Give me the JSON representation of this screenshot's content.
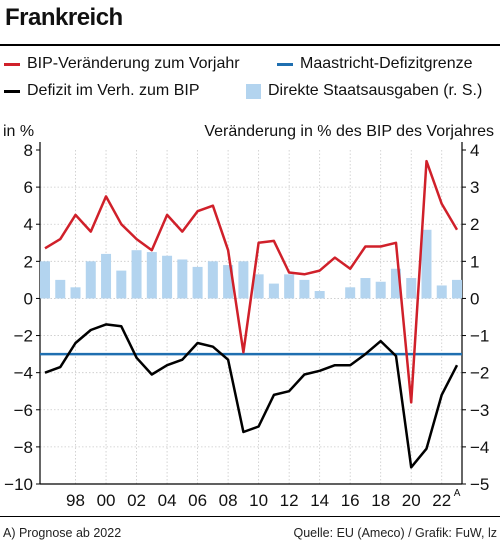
{
  "title": "Frankreich",
  "legend": {
    "gdp_change": "BIP-Veränderung zum Vorjahr",
    "maastricht": "Maastricht-Defizitgrenze",
    "deficit": "Defizit im Verh. zum BIP",
    "spending": "Direkte Staatsausgaben (r. S.)"
  },
  "footnote": "A) Prognose ab 2022",
  "source": "Quelle: EU (Ameco) / Grafik: FuW, lz",
  "colors": {
    "gdp_line": "#d0202a",
    "deficit_line": "#000000",
    "maastricht_line": "#1f6fb0",
    "spending_bars": "#b3d4ef"
  },
  "chart_data": {
    "type": "bar+line",
    "left_axis_label": "in %",
    "right_axis_label": "Veränderung in % des BIP des Vorjahres",
    "left_ylim": [
      -10,
      8
    ],
    "right_ylim": [
      -5,
      4
    ],
    "left_ticks": [
      "8",
      "6",
      "4",
      "2",
      "0",
      "−2",
      "−4",
      "−6",
      "−8",
      "−10"
    ],
    "right_ticks": [
      "4",
      "3",
      "2",
      "1",
      "0",
      "−1",
      "−2",
      "−3",
      "−4",
      "−5"
    ],
    "x_labels": [
      "98",
      "00",
      "02",
      "04",
      "06",
      "08",
      "10",
      "12",
      "14",
      "16",
      "18",
      "20",
      "22"
    ],
    "x_label_superscript": "A",
    "years": [
      1996,
      1997,
      1998,
      1999,
      2000,
      2001,
      2002,
      2003,
      2004,
      2005,
      2006,
      2007,
      2008,
      2009,
      2010,
      2011,
      2012,
      2013,
      2014,
      2015,
      2016,
      2017,
      2018,
      2019,
      2020,
      2021,
      2022,
      2023
    ],
    "series": [
      {
        "name": "BIP-Veränderung zum Vorjahr",
        "type": "line",
        "axis": "left",
        "values": [
          2.7,
          3.2,
          4.5,
          3.6,
          5.5,
          4.0,
          3.2,
          2.6,
          4.5,
          3.6,
          4.7,
          5.0,
          2.6,
          -2.9,
          3.0,
          3.1,
          1.4,
          1.3,
          1.5,
          2.2,
          1.6,
          2.8,
          2.8,
          3.0,
          -5.6,
          7.4,
          5.1,
          3.7
        ]
      },
      {
        "name": "Defizit im Verh. zum BIP",
        "type": "line",
        "axis": "left",
        "values": [
          -4.0,
          -3.7,
          -2.4,
          -1.7,
          -1.4,
          -1.5,
          -3.2,
          -4.1,
          -3.6,
          -3.3,
          -2.4,
          -2.6,
          -3.3,
          -7.2,
          -6.9,
          -5.2,
          -5.0,
          -4.1,
          -3.9,
          -3.6,
          -3.6,
          -3.0,
          -2.3,
          -3.1,
          -9.1,
          -8.1,
          -5.2,
          -3.6
        ]
      },
      {
        "name": "Direkte Staatsausgaben (r. S.)",
        "type": "bar",
        "axis": "right",
        "values": [
          1.0,
          0.5,
          0.3,
          1.0,
          1.2,
          0.75,
          1.3,
          1.25,
          1.15,
          1.05,
          0.85,
          1.0,
          0.9,
          1.0,
          0.65,
          0.4,
          0.65,
          0.5,
          0.2,
          0.0,
          0.3,
          0.55,
          0.45,
          0.8,
          0.55,
          1.85,
          0.35,
          0.5
        ]
      },
      {
        "name": "Maastricht-Defizitgrenze",
        "type": "hline",
        "axis": "left",
        "value": -3
      }
    ]
  }
}
